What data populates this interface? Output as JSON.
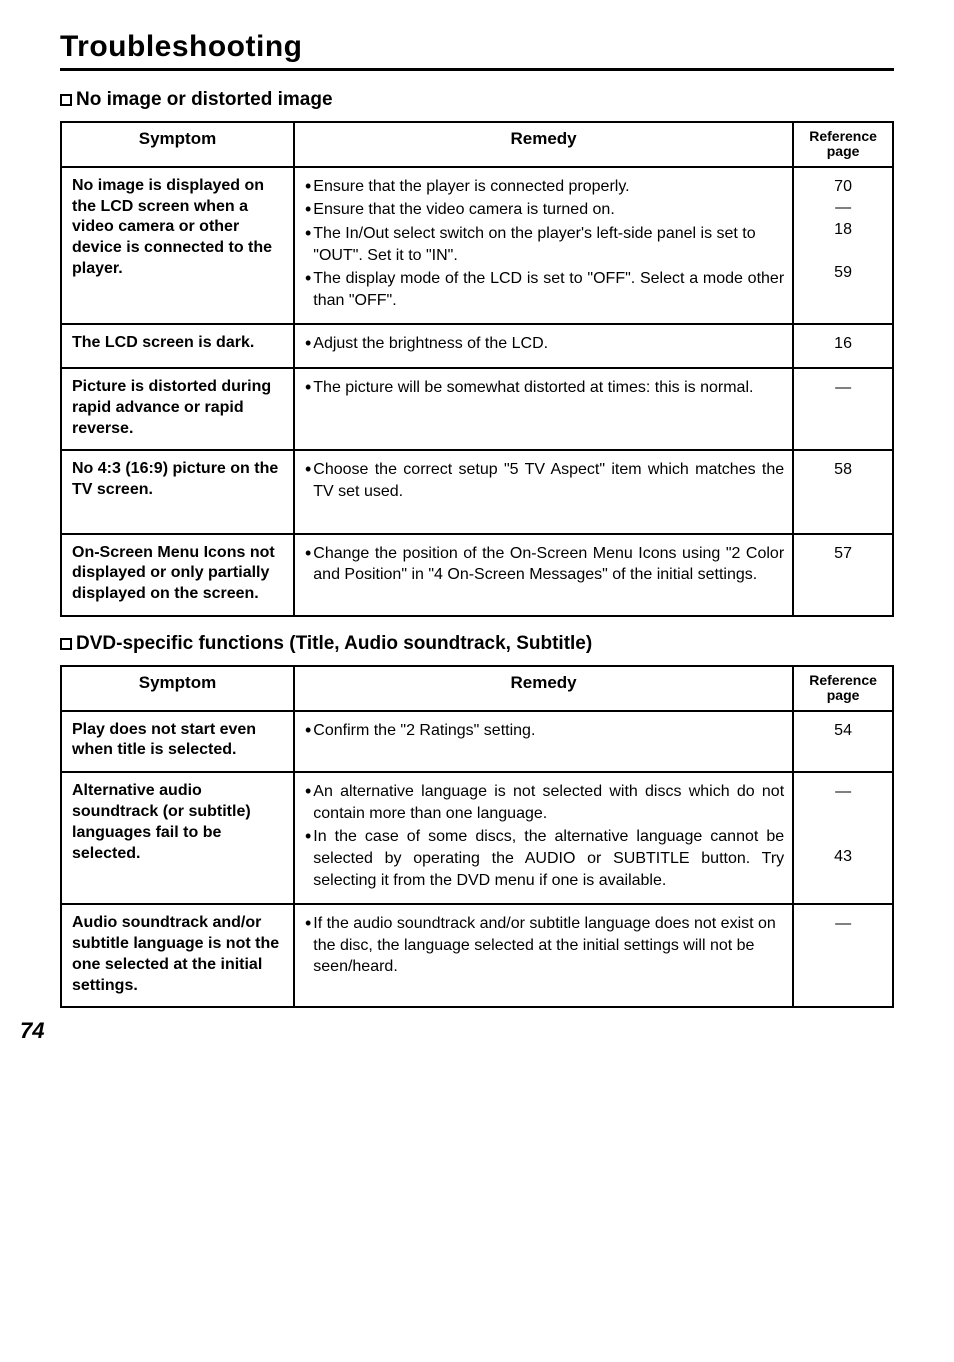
{
  "title": "Troubleshooting",
  "pageNumber": "74",
  "headers": {
    "symptom": "Symptom",
    "remedy": "Remedy",
    "reference": "Reference page"
  },
  "sections": [
    {
      "heading": "No image or distorted image",
      "rows": [
        {
          "symptom": "No image is displayed on the LCD screen when a video camera or other device is connected to the player.",
          "remedies": [
            {
              "text": "Ensure that the player is connected properly.",
              "justify": false
            },
            {
              "text": "Ensure that the video camera is turned on.",
              "justify": false
            },
            {
              "text": "The In/Out select switch on the player's left-side panel is set to \"OUT\". Set it to \"IN\".",
              "justify": false
            },
            {
              "text": "The display mode of the LCD is set to \"OFF\". Select a mode other than \"OFF\".",
              "justify": true
            }
          ],
          "refs": [
            "70",
            "—",
            "18",
            "",
            "59"
          ]
        },
        {
          "symptom": "The LCD screen is dark.",
          "remedies": [
            {
              "text": "Adjust the brightness of the LCD.",
              "justify": false
            }
          ],
          "refs": [
            "16"
          ]
        },
        {
          "symptom": "Picture is distorted during rapid advance or rapid reverse.",
          "remedies": [
            {
              "text": "The picture will be somewhat distorted at times: this is normal.",
              "justify": false
            }
          ],
          "refs": [
            "—"
          ]
        },
        {
          "symptom": "No 4:3 (16:9) picture on the TV screen.",
          "remedies": [
            {
              "text": "Choose the correct setup \"5 TV Aspect\" item which matches the TV set used.",
              "justify": true
            }
          ],
          "refs": [
            "58"
          ],
          "extraPad": true
        },
        {
          "symptom": "On-Screen Menu Icons not displayed or only partially displayed on the screen.",
          "remedies": [
            {
              "text": "Change the position of the On-Screen Menu Icons using \"2 Color and Position\" in \"4 On-Screen Messages\" of the initial settings.",
              "justify": true
            }
          ],
          "refs": [
            "57"
          ]
        }
      ]
    },
    {
      "heading": "DVD-specific functions (Title, Audio soundtrack, Subtitle)",
      "rows": [
        {
          "symptom": "Play does not start even when title is selected.",
          "remedies": [
            {
              "text": "Confirm the \"2 Ratings\" setting.",
              "justify": false
            }
          ],
          "refs": [
            "54"
          ]
        },
        {
          "symptom": "Alternative audio soundtrack (or subtitle) languages fail to be selected.",
          "remedies": [
            {
              "text": "An alternative language is not selected with discs which do not contain more than one language.",
              "justify": true
            },
            {
              "text": "In the case of some discs, the alternative language cannot be selected by operating the AUDIO or SUBTITLE button. Try selecting it from the DVD menu if one is available.",
              "justify": true
            }
          ],
          "refs": [
            "—",
            "",
            "",
            "43"
          ]
        },
        {
          "symptom": "Audio soundtrack and/or subtitle language is not the one selected at the initial settings.",
          "remedies": [
            {
              "text": "If the audio soundtrack and/or subtitle language does not exist on the disc, the language selected at the initial settings will not be seen/heard.",
              "justify": false
            }
          ],
          "refs": [
            "—"
          ]
        }
      ]
    }
  ]
}
